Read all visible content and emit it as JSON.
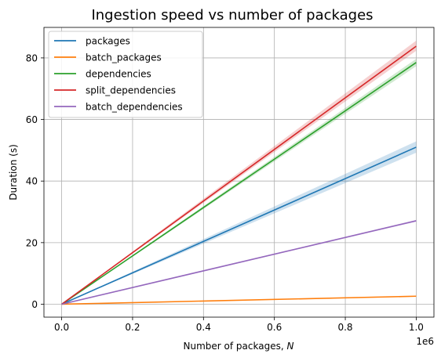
{
  "chart_data": {
    "type": "line",
    "title": "Ingestion speed vs number of packages",
    "xlabel": "Number of packages, N",
    "xlabel_main": "Number of packages, ",
    "xlabel_var": "N",
    "ylabel": "Duration (s)",
    "x_multiplier_label": "1e6",
    "xlim": [
      -0.05,
      1.05
    ],
    "ylim": [
      -4.2,
      89.9
    ],
    "xticks": [
      0.0,
      0.2,
      0.4,
      0.6,
      0.8,
      1.0
    ],
    "xtick_labels": [
      "0.0",
      "0.2",
      "0.4",
      "0.6",
      "0.8",
      "1.0"
    ],
    "yticks": [
      0,
      20,
      40,
      60,
      80
    ],
    "ytick_labels": [
      "0",
      "20",
      "40",
      "60",
      "80"
    ],
    "grid": true,
    "legend_position": "top-left",
    "x": [
      0.0,
      1.0
    ],
    "series": [
      {
        "name": "packages",
        "color": "#1f77b4",
        "values": [
          0,
          51.0
        ],
        "band": [
          [
            0,
            0
          ],
          [
            49.2,
            52.9
          ]
        ]
      },
      {
        "name": "batch_packages",
        "color": "#ff7f0e",
        "values": [
          0,
          2.6
        ],
        "band": [
          [
            0,
            0
          ],
          [
            2.4,
            2.8
          ]
        ]
      },
      {
        "name": "dependencies",
        "color": "#2ca02c",
        "values": [
          0,
          78.5
        ],
        "band": [
          [
            0,
            0
          ],
          [
            77.3,
            79.7
          ]
        ]
      },
      {
        "name": "split_dependencies",
        "color": "#d62728",
        "values": [
          0,
          83.8
        ],
        "band": [
          [
            0,
            0
          ],
          [
            82.3,
            85.6
          ]
        ]
      },
      {
        "name": "batch_dependencies",
        "color": "#9467bd",
        "values": [
          0,
          27.1
        ],
        "band": [
          [
            0,
            0
          ],
          [
            26.8,
            27.4
          ]
        ]
      }
    ]
  }
}
